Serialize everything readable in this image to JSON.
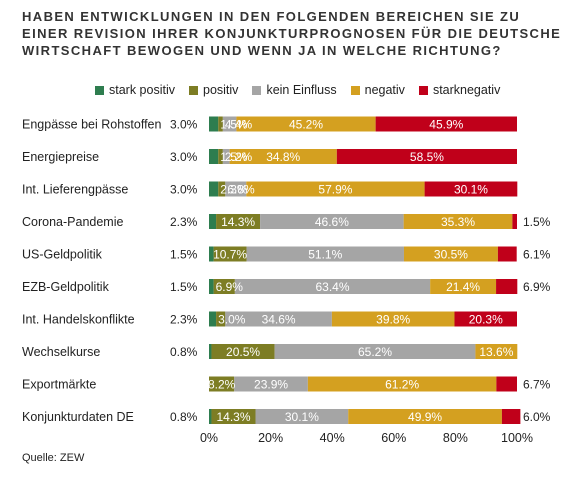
{
  "title_lines": [
    "HABEN ENTWICKLUNGEN IN DEN FOLGENDEN BEREICHEN SIE ZU",
    "EINER REVISION IHRER KONJUNKTURPROGNOSEN FÜR DIE DEUTSCHE",
    "WIRTSCHAFT BEWOGEN UND WENN JA IN WELCHE RICHTUNG?"
  ],
  "source": "Quelle: ZEW",
  "chart_data": {
    "type": "bar",
    "orientation": "horizontal",
    "stacked": true,
    "xlim": [
      0,
      100
    ],
    "xticks": [
      "0%",
      "20%",
      "40%",
      "60%",
      "80%",
      "100%"
    ],
    "legend_position": "top",
    "categories": [
      "Engpässe bei Rohstoffen",
      "Energiepreise",
      "Int. Lieferengpässe",
      "Corona-Pandemie",
      "US-Geldpolitik",
      "EZB-Geldpolitik",
      "Int. Handelskonflikte",
      "Wechselkurse",
      "Exportmärkte",
      "Konjunkturdaten DE"
    ],
    "series": [
      {
        "name": "stark positiv",
        "color": "#2e7d4f",
        "values": [
          3.0,
          3.0,
          3.0,
          2.3,
          1.5,
          1.5,
          2.3,
          0.8,
          0.0,
          0.8
        ],
        "labels": [
          "3.0%",
          "3.0%",
          "3.0%",
          "2.3%",
          "1.5%",
          "1.5%",
          "2.3%",
          "0.8%",
          "",
          "0.8%"
        ]
      },
      {
        "name": "positiv",
        "color": "#7d7d24",
        "values": [
          1.5,
          1.5,
          2.3,
          14.3,
          10.7,
          6.9,
          3.0,
          20.5,
          8.2,
          14.3
        ],
        "labels": [
          "1.5%",
          "1.5%",
          "2.3%",
          "14.3%",
          "10.7%",
          "6.9%",
          "3.0%",
          "20.5%",
          "8.2%",
          "14.3%"
        ]
      },
      {
        "name": "kein Einfluss",
        "color": "#a5a5a5",
        "values": [
          4.4,
          2.2,
          6.8,
          46.6,
          51.1,
          63.4,
          34.6,
          65.2,
          23.9,
          30.1
        ],
        "labels": [
          "4.4%",
          "2.2%",
          "6.8%",
          "46.6%",
          "51.1%",
          "63.4%",
          "34.6%",
          "65.2%",
          "23.9%",
          "30.1%"
        ]
      },
      {
        "name": "negativ",
        "color": "#d4a020",
        "values": [
          45.2,
          34.8,
          57.9,
          35.3,
          30.5,
          21.4,
          39.8,
          13.6,
          61.2,
          49.9
        ],
        "labels": [
          "45.2%",
          "34.8%",
          "57.9%",
          "35.3%",
          "30.5%",
          "21.4%",
          "39.8%",
          "13.6%",
          "61.2%",
          "49.9%"
        ]
      },
      {
        "name": "starknegativ",
        "color": "#c0001a",
        "values": [
          45.9,
          58.5,
          30.1,
          1.5,
          6.1,
          6.9,
          20.3,
          0.0,
          6.7,
          6.0
        ],
        "labels": [
          "45.9%",
          "58.5%",
          "30.1%",
          "1.5%",
          "6.1%",
          "6.9%",
          "20.3%",
          "",
          "6.7%",
          "6.0%"
        ]
      }
    ]
  }
}
